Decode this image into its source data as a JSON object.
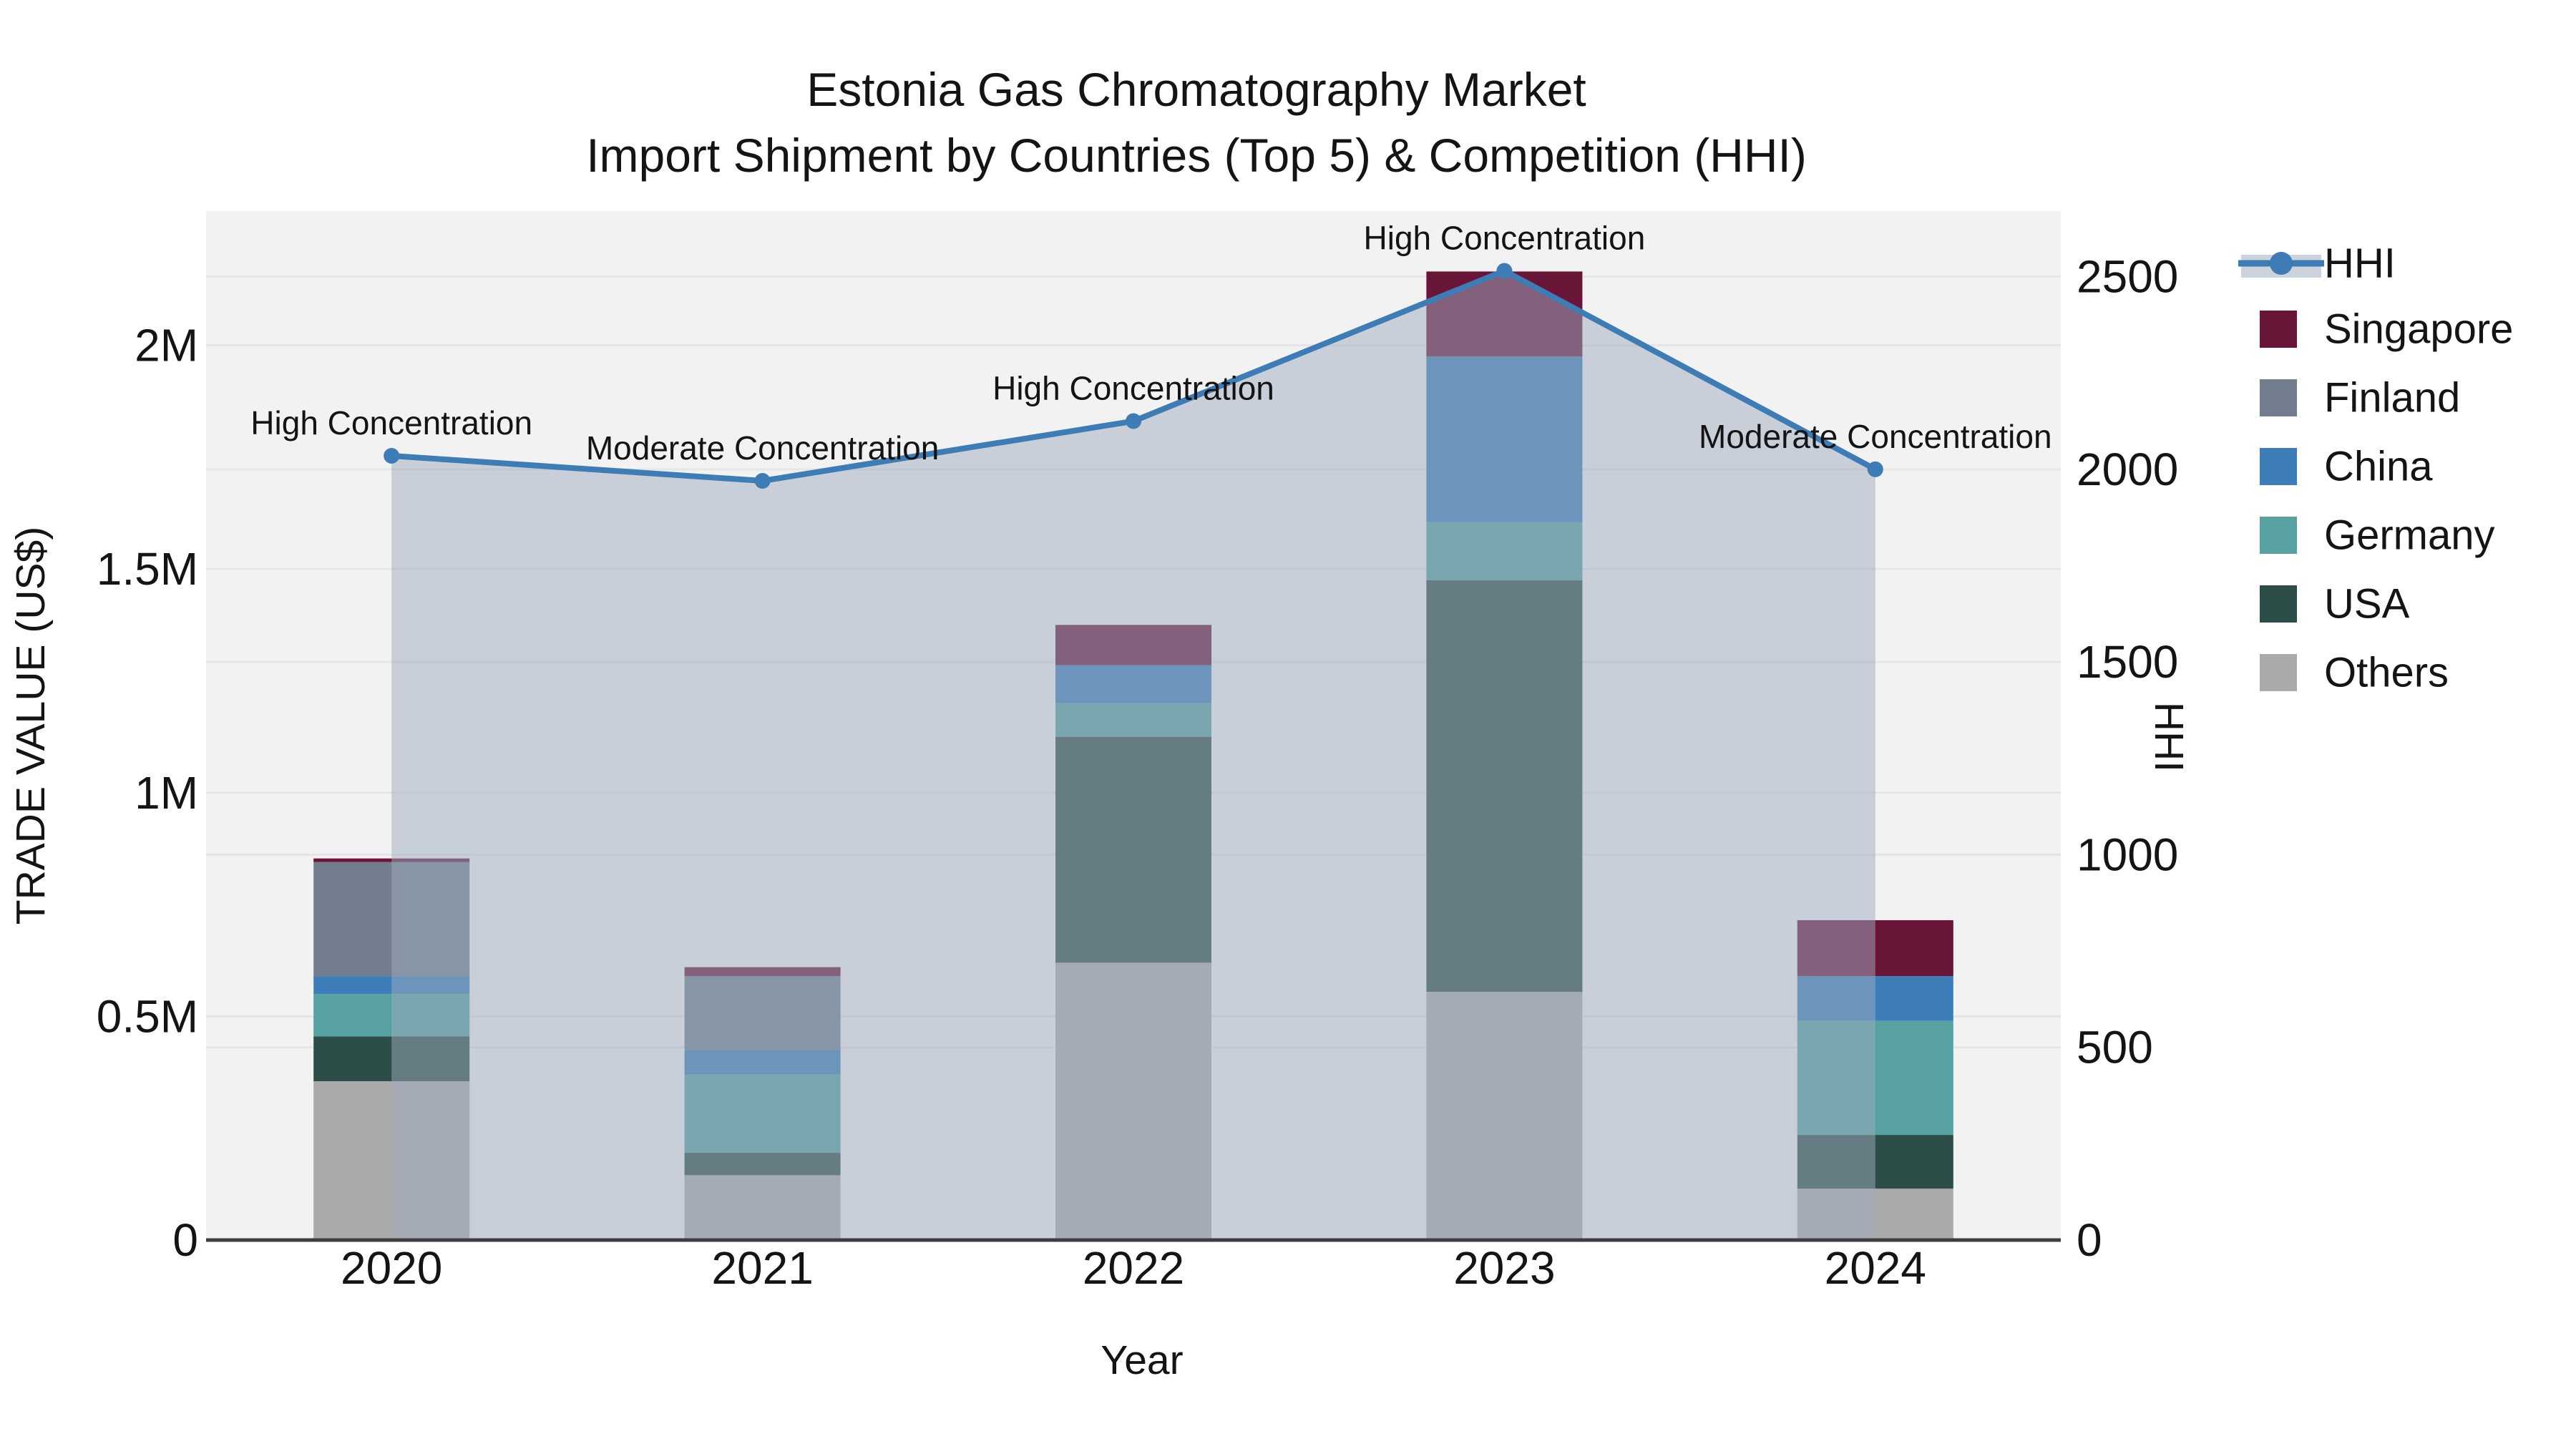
{
  "title": {
    "line1": "Estonia Gas Chromatography Market",
    "line2": "Import Shipment by Countries (Top 5) & Competition (HHI)"
  },
  "chart_data": {
    "type": "combo: stacked-bar + line",
    "categories": [
      "2020",
      "2021",
      "2022",
      "2023",
      "2024"
    ],
    "xlabel": "Year",
    "ylabel_left": "TRADE VALUE (US$)",
    "ylabel_right": "HHI",
    "left_axis": {
      "tick_labels": [
        "0",
        "0.5M",
        "1M",
        "1.5M",
        "2M"
      ],
      "tick_values": [
        0,
        500000,
        1000000,
        1500000,
        2000000
      ],
      "range": [
        0,
        2300000
      ],
      "grid": true
    },
    "right_axis": {
      "tick_labels": [
        "0",
        "500",
        "1000",
        "1500",
        "2000",
        "2500"
      ],
      "tick_values": [
        0,
        500,
        1000,
        1500,
        2000,
        2500
      ],
      "range": [
        0,
        2670
      ],
      "grid": true
    },
    "series": [
      {
        "name": "Singapore",
        "color": "#691538",
        "values": [
          8000,
          20000,
          90000,
          190000,
          125000
        ]
      },
      {
        "name": "Finland",
        "color": "#727e8e",
        "values": [
          255000,
          165000,
          0,
          0,
          0
        ]
      },
      {
        "name": "China",
        "color": "#3d7eb8",
        "values": [
          40000,
          55000,
          85000,
          370000,
          100000
        ]
      },
      {
        "name": "Germany",
        "color": "#57a1a2",
        "values": [
          95000,
          175000,
          75000,
          130000,
          255000
        ]
      },
      {
        "name": "USA",
        "color": "#2d4d49",
        "values": [
          100000,
          50000,
          505000,
          920000,
          120000
        ]
      },
      {
        "name": "Others",
        "color": "#aaaaaa",
        "values": [
          355000,
          145000,
          620000,
          555000,
          115000
        ]
      }
    ],
    "line": {
      "name": "HHI",
      "color": "#3d7cb5",
      "area_fill": "rgba(157,171,190,0.5)",
      "values": [
        2035,
        1970,
        2125,
        2515,
        2000
      ]
    },
    "annotations": [
      "High Concentration",
      "Moderate Concentration",
      "High Concentration",
      "High Concentration",
      "Moderate Concentration"
    ],
    "legend": {
      "position": "right-top, outside plot",
      "hhi_label": "HHI",
      "entries": [
        "Singapore",
        "Finland",
        "China",
        "Germany",
        "USA",
        "Others"
      ]
    },
    "style": {
      "plot_bg": "#f2f2f3",
      "grid_color": "#e4e5e7",
      "axis_color": "#3d3d3d",
      "legend_band_color": "#ccd3dc"
    }
  }
}
